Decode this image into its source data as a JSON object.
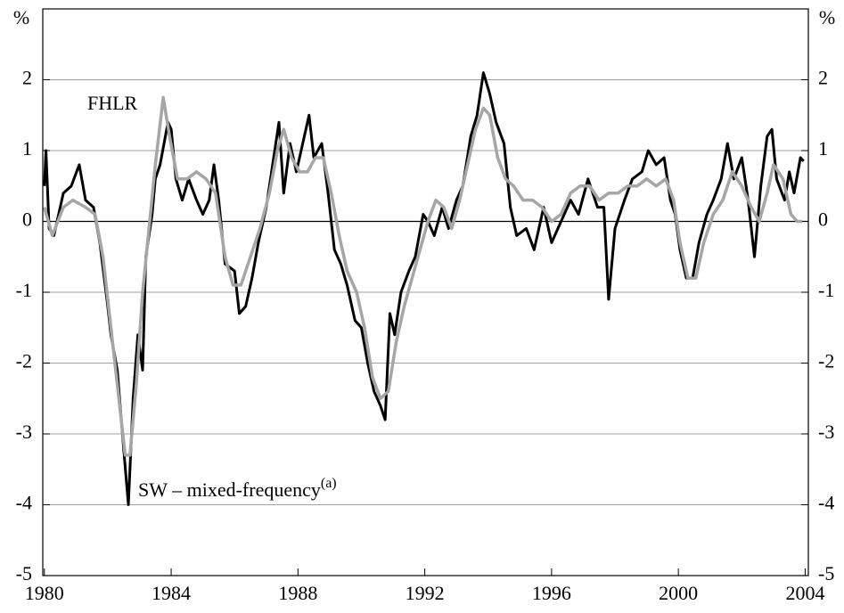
{
  "chart_data": {
    "type": "line",
    "y_unit": "%",
    "xlim": [
      1979.95,
      2004.1
    ],
    "xticks": [
      1980,
      1984,
      1988,
      1992,
      1996,
      2000,
      2004
    ],
    "ylim": [
      -5,
      3
    ],
    "yticks": [
      -5,
      -4,
      -3,
      -2,
      -1,
      0,
      1,
      2
    ],
    "grid": true,
    "series": [
      {
        "name": "SW – mixed-frequency",
        "name_note": "(a)",
        "color": "#000000",
        "x": [
          1980.0,
          1980.05,
          1980.15,
          1980.3,
          1980.6,
          1980.85,
          1981.1,
          1981.3,
          1981.55,
          1981.75,
          1982.0,
          1982.1,
          1982.3,
          1982.5,
          1982.65,
          1982.8,
          1982.95,
          1983.1,
          1983.2,
          1983.4,
          1983.5,
          1983.65,
          1983.9,
          1984.0,
          1984.15,
          1984.35,
          1984.55,
          1984.8,
          1985.0,
          1985.2,
          1985.35,
          1985.5,
          1985.7,
          1986.0,
          1986.15,
          1986.35,
          1986.55,
          1986.75,
          1987.0,
          1987.2,
          1987.4,
          1987.55,
          1987.75,
          1987.95,
          1988.2,
          1988.35,
          1988.5,
          1988.75,
          1988.95,
          1989.15,
          1989.35,
          1989.55,
          1989.8,
          1990.0,
          1990.2,
          1990.4,
          1990.6,
          1990.75,
          1990.9,
          1991.05,
          1991.25,
          1991.5,
          1991.7,
          1991.95,
          1992.1,
          1992.3,
          1992.55,
          1992.75,
          1993.0,
          1993.2,
          1993.45,
          1993.65,
          1993.85,
          1994.05,
          1994.25,
          1994.5,
          1994.7,
          1994.9,
          1995.2,
          1995.45,
          1995.75,
          1996.0,
          1996.3,
          1996.6,
          1996.85,
          1997.15,
          1997.45,
          1997.65,
          1997.8,
          1998.0,
          1998.3,
          1998.55,
          1998.85,
          1999.05,
          1999.3,
          1999.55,
          1999.75,
          1999.9,
          2000.05,
          2000.25,
          2000.45,
          2000.65,
          2000.9,
          2001.1,
          2001.35,
          2001.55,
          2001.75,
          2002.0,
          2002.2,
          2002.4,
          2002.6,
          2002.8,
          2002.95,
          2003.1,
          2003.35,
          2003.5,
          2003.65,
          2003.85,
          2003.95
        ],
        "values": [
          0.5,
          1.0,
          -0.1,
          -0.2,
          0.4,
          0.5,
          0.8,
          0.3,
          0.2,
          -0.3,
          -1.2,
          -1.6,
          -2.1,
          -3.2,
          -4.0,
          -2.5,
          -1.6,
          -2.1,
          -0.5,
          0.1,
          0.6,
          0.8,
          1.4,
          1.3,
          0.6,
          0.3,
          0.6,
          0.3,
          0.1,
          0.3,
          0.8,
          0.3,
          -0.6,
          -0.7,
          -1.3,
          -1.2,
          -0.8,
          -0.3,
          0.2,
          0.8,
          1.4,
          0.4,
          1.1,
          0.7,
          1.2,
          1.5,
          0.9,
          1.1,
          0.4,
          -0.4,
          -0.6,
          -0.9,
          -1.4,
          -1.5,
          -2.0,
          -2.4,
          -2.6,
          -2.8,
          -1.3,
          -1.6,
          -1.0,
          -0.7,
          -0.5,
          0.1,
          0.0,
          -0.2,
          0.2,
          -0.1,
          0.3,
          0.5,
          1.2,
          1.5,
          2.1,
          1.8,
          1.4,
          1.1,
          0.2,
          -0.2,
          -0.1,
          -0.4,
          0.2,
          -0.3,
          0.0,
          0.3,
          0.1,
          0.6,
          0.2,
          0.2,
          -1.1,
          -0.1,
          0.3,
          0.6,
          0.7,
          1.0,
          0.8,
          0.9,
          0.3,
          0.1,
          -0.4,
          -0.8,
          -0.8,
          -0.3,
          0.1,
          0.3,
          0.6,
          1.1,
          0.6,
          0.9,
          0.3,
          -0.5,
          0.5,
          1.2,
          1.3,
          0.6,
          0.3,
          0.7,
          0.4,
          0.9,
          0.85
        ]
      },
      {
        "name": "FHLR",
        "color": "#a6a6a6",
        "x": [
          1980.0,
          1980.25,
          1980.6,
          1980.9,
          1981.3,
          1981.6,
          1981.85,
          1982.1,
          1982.35,
          1982.55,
          1982.7,
          1982.9,
          1983.1,
          1983.3,
          1983.5,
          1983.75,
          1983.95,
          1984.2,
          1984.5,
          1984.8,
          1985.1,
          1985.4,
          1985.7,
          1985.95,
          1986.2,
          1986.5,
          1986.8,
          1987.1,
          1987.35,
          1987.55,
          1987.8,
          1988.05,
          1988.3,
          1988.55,
          1988.8,
          1989.05,
          1989.3,
          1989.55,
          1989.85,
          1990.1,
          1990.35,
          1990.6,
          1990.85,
          1991.1,
          1991.35,
          1991.6,
          1991.85,
          1992.1,
          1992.35,
          1992.6,
          1992.85,
          1993.1,
          1993.35,
          1993.6,
          1993.85,
          1994.05,
          1994.3,
          1994.55,
          1994.8,
          1995.1,
          1995.4,
          1995.7,
          1996.0,
          1996.3,
          1996.6,
          1996.9,
          1997.2,
          1997.5,
          1997.8,
          1998.1,
          1998.4,
          1998.7,
          1999.0,
          1999.3,
          1999.6,
          1999.85,
          2000.05,
          2000.3,
          2000.55,
          2000.8,
          2001.1,
          2001.4,
          2001.7,
          2002.0,
          2002.3,
          2002.55,
          2002.8,
          2003.0,
          2003.3,
          2003.55,
          2003.75,
          2003.9
        ],
        "values": [
          0.2,
          -0.2,
          0.2,
          0.3,
          0.2,
          0.1,
          -0.5,
          -1.5,
          -2.5,
          -3.3,
          -3.3,
          -2.3,
          -1.0,
          -0.1,
          0.8,
          1.75,
          1.2,
          0.6,
          0.6,
          0.7,
          0.6,
          0.4,
          -0.5,
          -0.9,
          -0.9,
          -0.5,
          -0.1,
          0.4,
          1.0,
          1.3,
          0.9,
          0.7,
          0.7,
          0.9,
          0.9,
          0.4,
          -0.2,
          -0.7,
          -1.0,
          -1.5,
          -2.2,
          -2.5,
          -2.4,
          -1.7,
          -1.2,
          -0.8,
          -0.4,
          0.0,
          0.3,
          0.2,
          -0.1,
          0.3,
          0.8,
          1.3,
          1.6,
          1.5,
          0.9,
          0.6,
          0.5,
          0.3,
          0.3,
          0.2,
          0.0,
          0.1,
          0.4,
          0.5,
          0.5,
          0.3,
          0.4,
          0.4,
          0.5,
          0.5,
          0.6,
          0.5,
          0.6,
          0.3,
          -0.3,
          -0.8,
          -0.8,
          -0.3,
          0.1,
          0.3,
          0.7,
          0.5,
          0.2,
          0.0,
          0.4,
          0.8,
          0.6,
          0.1,
          0.0,
          0.0
        ]
      }
    ]
  }
}
